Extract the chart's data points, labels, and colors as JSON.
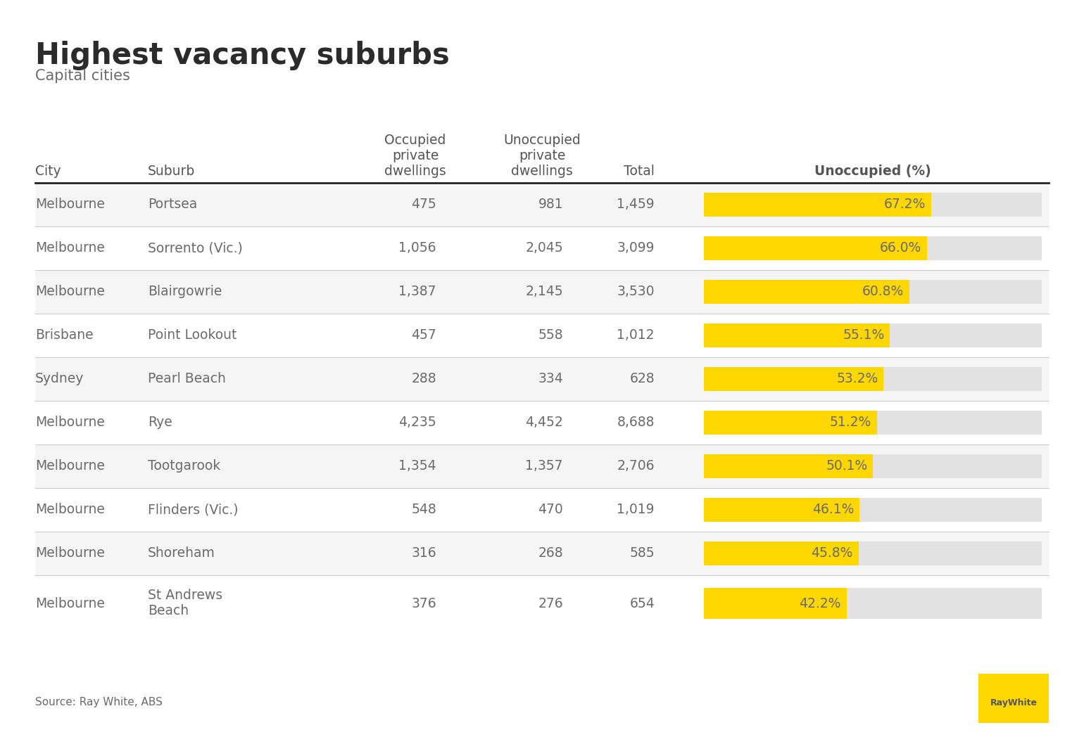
{
  "title": "Highest vacancy suburbs",
  "subtitle": "Capital cities",
  "source": "Source: Ray White, ABS",
  "col_headers": [
    "City",
    "Suburb",
    "Occupied\nprivate\ndwellings",
    "Unoccupied\nprivate\ndwellings",
    "Total",
    "Unoccupied (%)"
  ],
  "col_bold": [
    false,
    false,
    false,
    false,
    false,
    true
  ],
  "rows": [
    [
      "Melbourne",
      "Portsea",
      "475",
      "981",
      "1,459",
      67.2
    ],
    [
      "Melbourne",
      "Sorrento (Vic.)",
      "1,056",
      "2,045",
      "3,099",
      66.0
    ],
    [
      "Melbourne",
      "Blairgowrie",
      "1,387",
      "2,145",
      "3,530",
      60.8
    ],
    [
      "Brisbane",
      "Point Lookout",
      "457",
      "558",
      "1,012",
      55.1
    ],
    [
      "Sydney",
      "Pearl Beach",
      "288",
      "334",
      "628",
      53.2
    ],
    [
      "Melbourne",
      "Rye",
      "4,235",
      "4,452",
      "8,688",
      51.2
    ],
    [
      "Melbourne",
      "Tootgarook",
      "1,354",
      "1,357",
      "2,706",
      50.1
    ],
    [
      "Melbourne",
      "Flinders (Vic.)",
      "548",
      "470",
      "1,019",
      46.1
    ],
    [
      "Melbourne",
      "Shoreham",
      "316",
      "268",
      "585",
      45.8
    ],
    [
      "Melbourne",
      "St Andrews\nBeach",
      "376",
      "276",
      "654",
      42.2
    ]
  ],
  "yellow_bar_color": "#FFD700",
  "gray_bar_color": "#E2E2E2",
  "text_color": "#6B6B6B",
  "title_color": "#2B2B2B",
  "header_color": "#555555",
  "background_color": "#FFFFFF",
  "row_bg_alt": "#F5F5F5",
  "row_bg_main": "#FFFFFF",
  "logo_color": "#FFD700",
  "logo_text_color": "#555555",
  "sep_line_color": "#CCCCCC",
  "header_line_color": "#222222"
}
